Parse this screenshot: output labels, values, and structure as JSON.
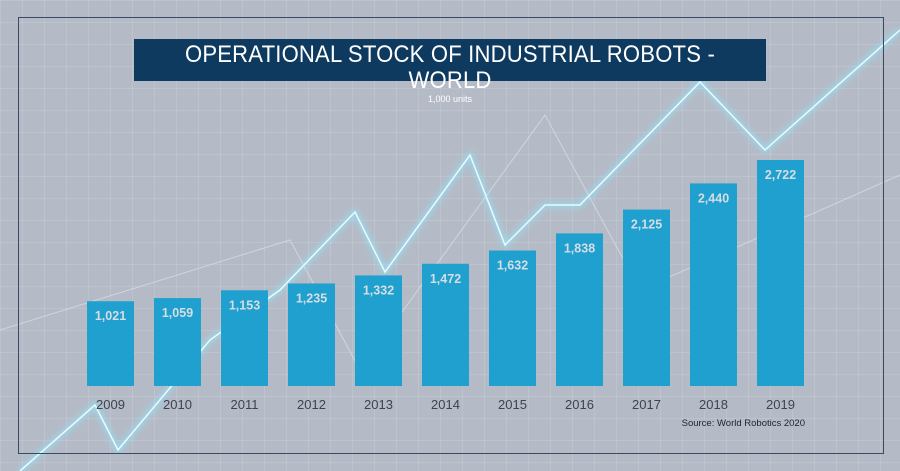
{
  "chart_data": {
    "type": "bar",
    "title": "OPERATIONAL STOCK OF INDUSTRIAL ROBOTS - WORLD",
    "subtitle": "1,000 units",
    "categories": [
      "2009",
      "2010",
      "2011",
      "2012",
      "2013",
      "2014",
      "2015",
      "2016",
      "2017",
      "2018",
      "2019"
    ],
    "values": [
      1021,
      1059,
      1153,
      1235,
      1332,
      1472,
      1632,
      1838,
      2125,
      2440,
      2722
    ],
    "value_labels": [
      "1,021",
      "1,059",
      "1,153",
      "1,235",
      "1,332",
      "1,472",
      "1,632",
      "1,838",
      "2,125",
      "2,440",
      "2,722"
    ],
    "xlabel": "",
    "ylabel": "",
    "ylim": [
      0,
      2722
    ],
    "grid": false,
    "source": "Source: World Robotics 2020",
    "colors": {
      "bar": "#1fa0cf",
      "label": "#d6dde4",
      "axis_text": "#3b4450",
      "title_bg": "#0f3a5f"
    }
  }
}
